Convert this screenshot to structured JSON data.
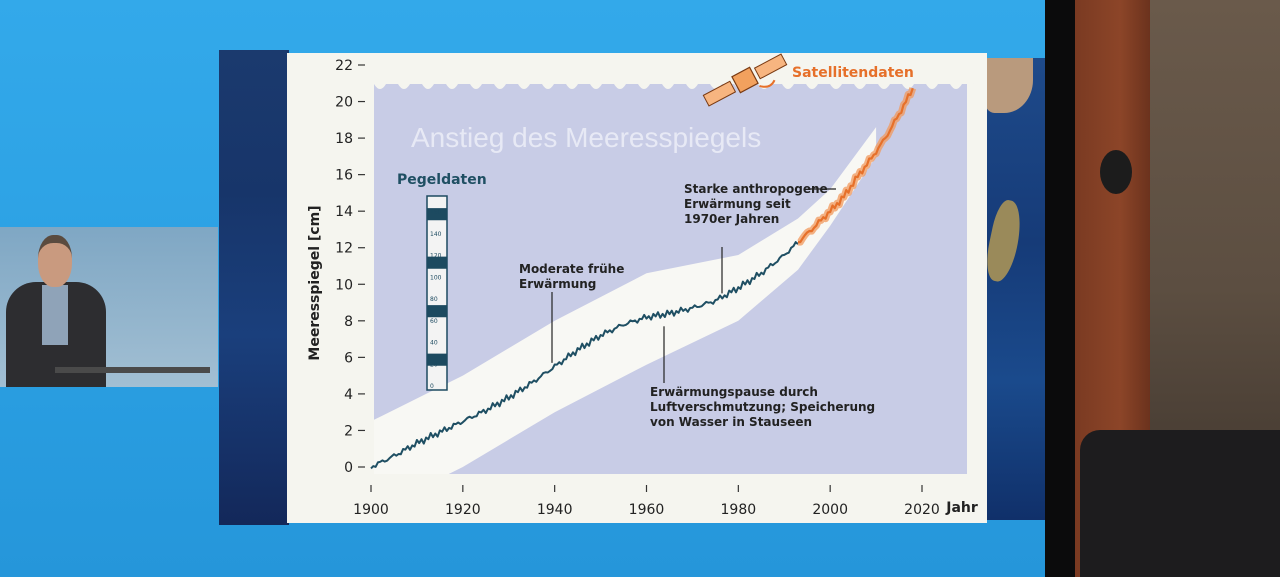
{
  "chart_data": {
    "type": "line",
    "title": "Anstieg des Meeresspiegels",
    "ylabel": "Meeresspiegel [cm]",
    "xlabel": "Jahr",
    "xlim": [
      1900,
      2020
    ],
    "ylim": [
      0,
      22
    ],
    "x_ticks": [
      1900,
      1920,
      1940,
      1960,
      1980,
      2000,
      2020
    ],
    "y_ticks": [
      0,
      2,
      4,
      6,
      8,
      10,
      12,
      14,
      16,
      18,
      20,
      22
    ],
    "series": [
      {
        "name": "Pegeldaten",
        "color": "#1f4f63",
        "x": [
          1900,
          1905,
          1910,
          1915,
          1920,
          1925,
          1930,
          1935,
          1940,
          1945,
          1950,
          1955,
          1960,
          1965,
          1970,
          1975,
          1980,
          1985,
          1990,
          1993
        ],
        "y": [
          0.0,
          0.6,
          1.3,
          1.9,
          2.5,
          3.1,
          3.8,
          4.6,
          5.5,
          6.4,
          7.2,
          7.8,
          8.2,
          8.4,
          8.7,
          9.1,
          9.8,
          10.6,
          11.6,
          12.3
        ]
      },
      {
        "name": "Satellitendaten",
        "color": "#e6702a",
        "x": [
          1993,
          1996,
          2000,
          2003,
          2006,
          2009,
          2012,
          2015,
          2018
        ],
        "y": [
          12.3,
          13.0,
          14.0,
          14.8,
          15.9,
          16.9,
          18.0,
          19.3,
          20.7
        ]
      }
    ],
    "uncertainty_band": {
      "color": "#fbfaf4",
      "x": [
        1900,
        1920,
        1940,
        1960,
        1980,
        1993,
        2000,
        2010
      ],
      "lower": [
        -2.5,
        0.0,
        3.0,
        5.6,
        8.0,
        10.8,
        13.2,
        17.0
      ],
      "upper": [
        2.5,
        5.0,
        8.0,
        10.6,
        11.6,
        13.6,
        15.2,
        18.6
      ]
    },
    "annotations": [
      {
        "lines": [
          "Moderate frühe",
          "Erwärmung"
        ],
        "x": 1938,
        "y": 5.7
      },
      {
        "lines": [
          "Erwärmungspause durch",
          "Luftverschmutzung; Speicherung",
          "von Wasser in Stauseen"
        ],
        "x": 1963,
        "y": 7.7
      },
      {
        "lines": [
          "Starke anthropogene",
          "Erwärmung seit",
          "1970er Jahren"
        ],
        "x": 1975,
        "y": 9.5
      }
    ],
    "legend": [
      "Pegeldaten",
      "Satellitendaten"
    ],
    "gauge_ticks": [
      "160",
      "140",
      "120",
      "100",
      "80",
      "60",
      "40",
      "20",
      "0"
    ],
    "colors": {
      "plot_bg": "#c8cce6",
      "slide_bg": "#f5f5ef",
      "pegel": "#1f4f63",
      "satellite": "#e6702a",
      "annotation_text": "#222222"
    }
  },
  "icons": {
    "satellite": "satellite-icon",
    "tide_gauge": "tide-gauge-icon"
  }
}
